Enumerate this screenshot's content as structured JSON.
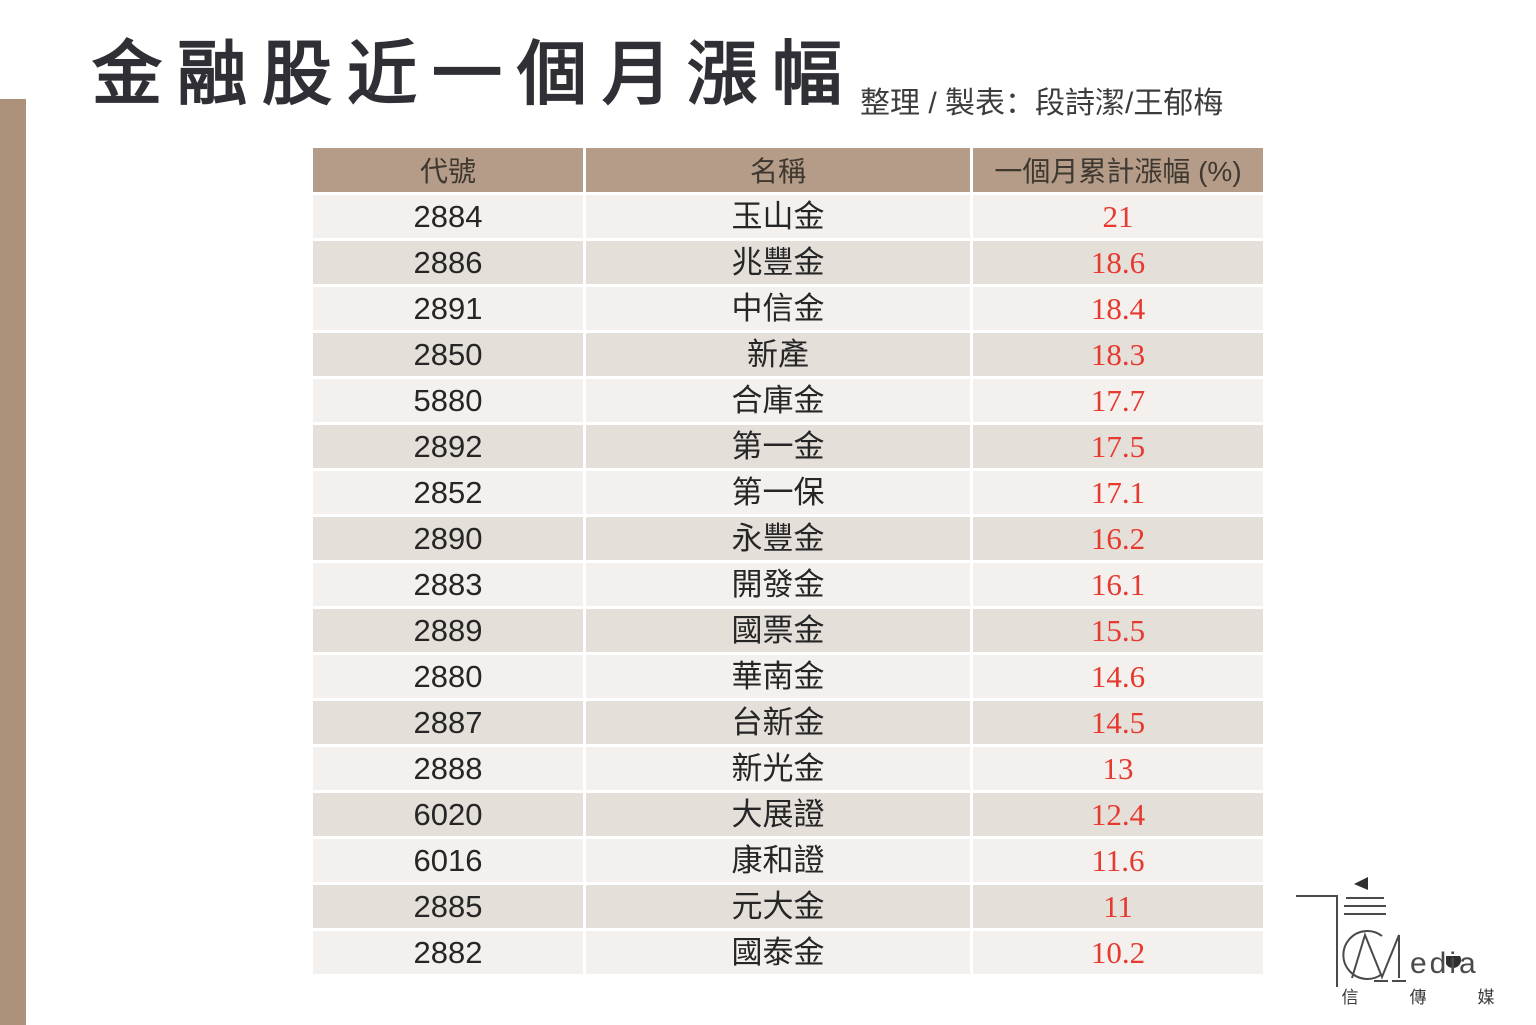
{
  "page": {
    "title": "金融股近一個月漲幅",
    "credit": "整理 / 製表：段詩潔/王郁梅"
  },
  "chart_data": {
    "type": "table",
    "title": "金融股近一個月漲幅",
    "credit": "整理 / 製表：段詩潔/王郁梅",
    "columns": [
      "代號",
      "名稱",
      "一個月累計漲幅 (%)"
    ],
    "rows": [
      {
        "code": "2884",
        "name": "玉山金",
        "change": "21",
        "change_value": 21
      },
      {
        "code": "2886",
        "name": "兆豐金",
        "change": "18.6",
        "change_value": 18.6
      },
      {
        "code": "2891",
        "name": "中信金",
        "change": "18.4",
        "change_value": 18.4
      },
      {
        "code": "2850",
        "name": "新產",
        "change": "18.3",
        "change_value": 18.3
      },
      {
        "code": "5880",
        "name": "合庫金",
        "change": "17.7",
        "change_value": 17.7
      },
      {
        "code": "2892",
        "name": "第一金",
        "change": "17.5",
        "change_value": 17.5
      },
      {
        "code": "2852",
        "name": "第一保",
        "change": "17.1",
        "change_value": 17.1
      },
      {
        "code": "2890",
        "name": "永豐金",
        "change": "16.2",
        "change_value": 16.2
      },
      {
        "code": "2883",
        "name": "開發金",
        "change": "16.1",
        "change_value": 16.1
      },
      {
        "code": "2889",
        "name": "國票金",
        "change": "15.5",
        "change_value": 15.5
      },
      {
        "code": "2880",
        "name": "華南金",
        "change": "14.6",
        "change_value": 14.6
      },
      {
        "code": "2887",
        "name": "台新金",
        "change": "14.5",
        "change_value": 14.5
      },
      {
        "code": "2888",
        "name": "新光金",
        "change": "13",
        "change_value": 13
      },
      {
        "code": "6020",
        "name": "大展證",
        "change": "12.4",
        "change_value": 12.4
      },
      {
        "code": "6016",
        "name": "康和證",
        "change": "11.6",
        "change_value": 11.6
      },
      {
        "code": "2885",
        "name": "元大金",
        "change": "11",
        "change_value": 11
      },
      {
        "code": "2882",
        "name": "國泰金",
        "change": "10.2",
        "change_value": 10.2
      }
    ]
  },
  "logo": {
    "brand_latin": "edia",
    "cjk": [
      "信",
      "傳",
      "媒"
    ]
  },
  "colors": {
    "accent_bar": "#ab9179",
    "header_bg": "#b59c88",
    "row_light": "#f3f0ed",
    "row_dark": "#e5dfda",
    "value_red": "#e6392f",
    "title_text": "#302f35"
  }
}
